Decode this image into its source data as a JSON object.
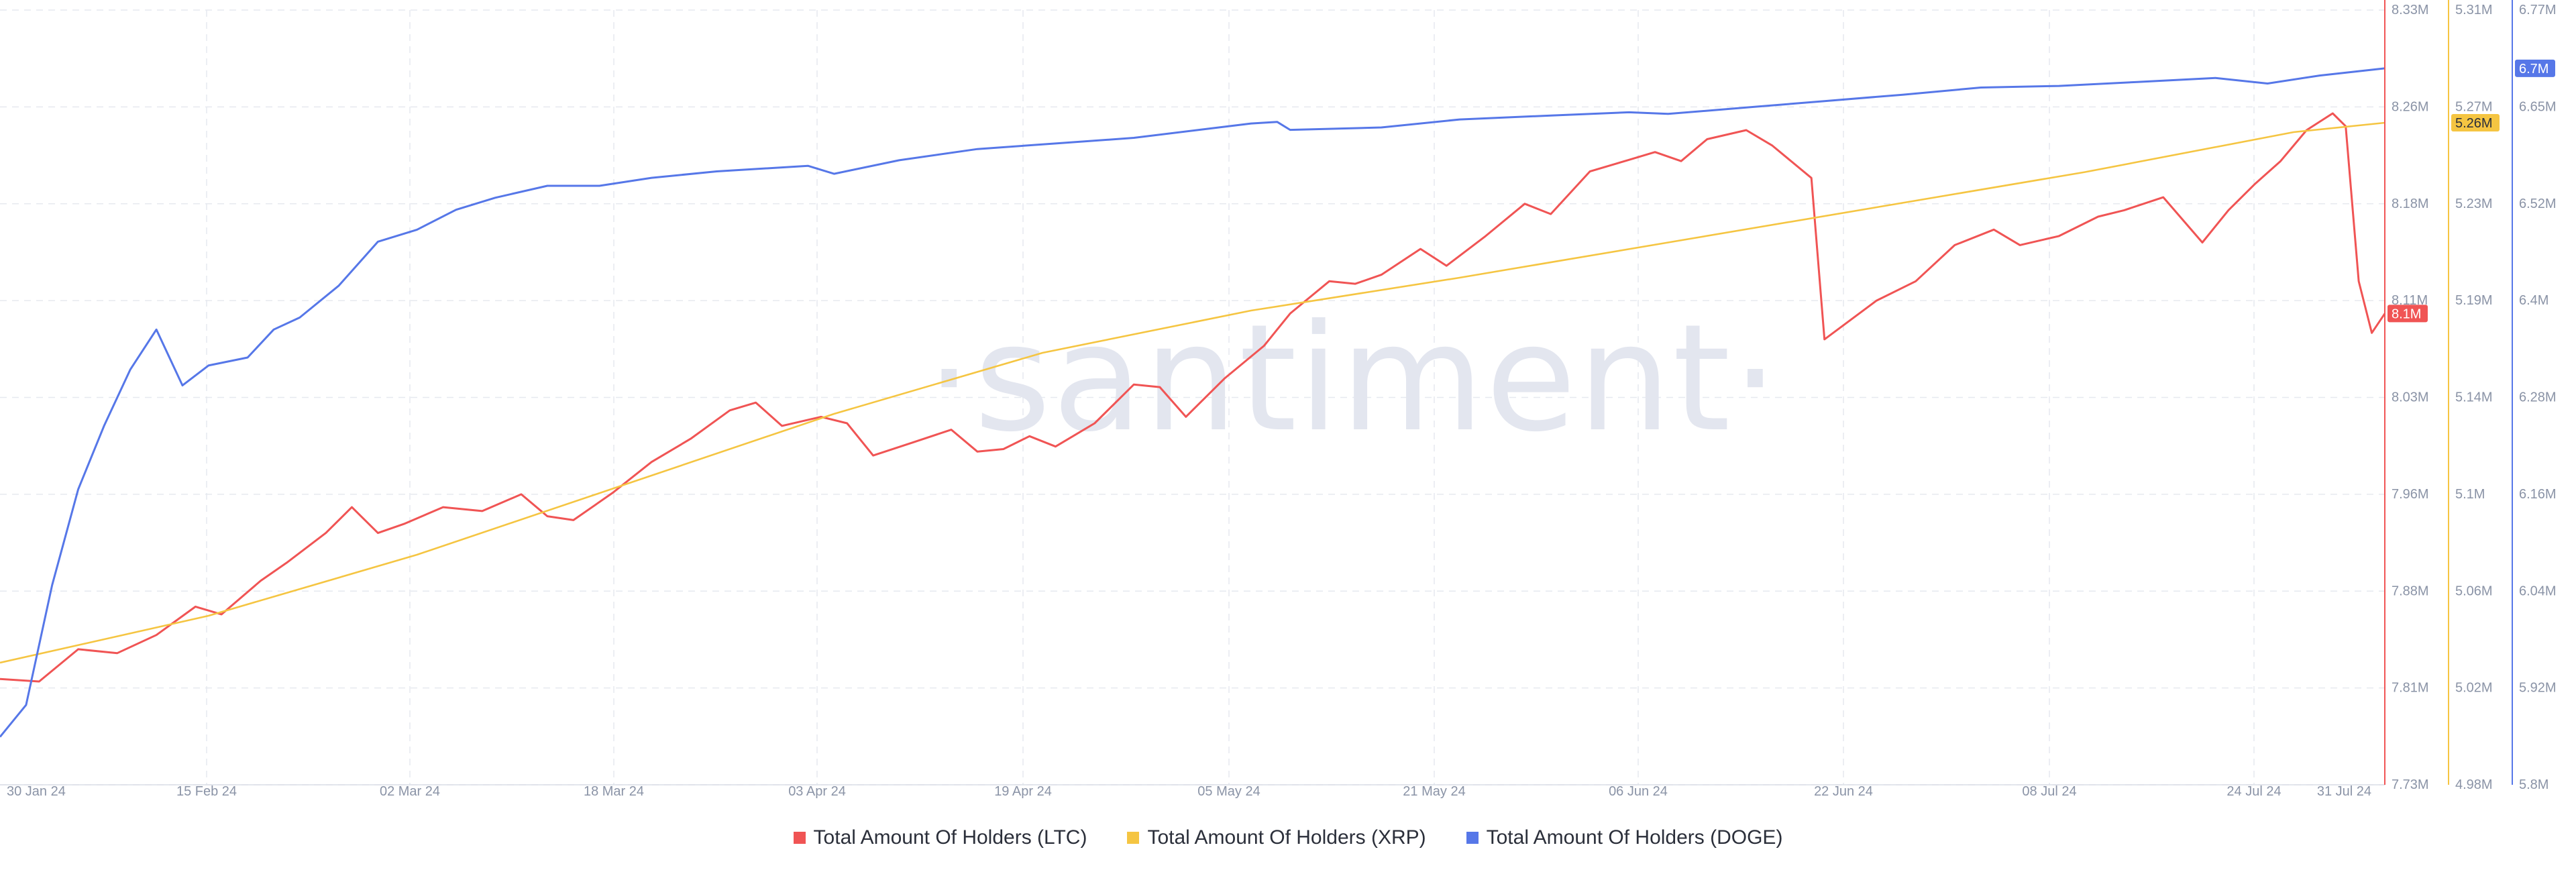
{
  "watermark": "·santiment·",
  "colors": {
    "ltc": "#f05454",
    "xrp": "#f5c542",
    "doge": "#5677e8",
    "grid": "#e6e9ef",
    "tick": "#8a93a6"
  },
  "chart_data": {
    "type": "line",
    "x_ticks": [
      "30 Jan 24",
      "15 Feb 24",
      "02 Mar 24",
      "18 Mar 24",
      "03 Apr 24",
      "19 Apr 24",
      "05 May 24",
      "21 May 24",
      "06 Jun 24",
      "22 Jun 24",
      "08 Jul 24",
      "24 Jul 24",
      "31 Jul 24"
    ],
    "x_start": "2024-01-30",
    "x_end": "2024-07-31",
    "grid": true,
    "legend_position": "bottom-center",
    "axes": {
      "ltc": {
        "ticks": [
          "8.33M",
          "8.26M",
          "8.18M",
          "8.11M",
          "8.03M",
          "7.96M",
          "7.88M",
          "7.81M",
          "7.73M"
        ],
        "min": 7.73,
        "max": 8.33,
        "unit": "M",
        "current_label": "8.1M"
      },
      "xrp": {
        "ticks": [
          "5.31M",
          "5.27M",
          "5.23M",
          "5.19M",
          "5.14M",
          "5.1M",
          "5.06M",
          "5.02M",
          "4.98M"
        ],
        "min": 4.98,
        "max": 5.31,
        "unit": "M",
        "current_label": "5.26M"
      },
      "doge": {
        "ticks": [
          "6.77M",
          "6.65M",
          "6.52M",
          "6.4M",
          "6.28M",
          "6.16M",
          "6.04M",
          "5.92M",
          "5.8M"
        ],
        "min": 5.8,
        "max": 6.77,
        "unit": "M",
        "current_label": "6.7M"
      }
    },
    "series": [
      {
        "name": "Total Amount Of Holders (LTC)",
        "key": "ltc",
        "points": [
          [
            "2024-01-30",
            7.812
          ],
          [
            "2024-02-02",
            7.81
          ],
          [
            "2024-02-05",
            7.835
          ],
          [
            "2024-02-08",
            7.832
          ],
          [
            "2024-02-11",
            7.846
          ],
          [
            "2024-02-14",
            7.868
          ],
          [
            "2024-02-16",
            7.862
          ],
          [
            "2024-02-19",
            7.888
          ],
          [
            "2024-02-21",
            7.902
          ],
          [
            "2024-02-24",
            7.925
          ],
          [
            "2024-02-26",
            7.945
          ],
          [
            "2024-02-28",
            7.925
          ],
          [
            "2024-03-01",
            7.932
          ],
          [
            "2024-03-04",
            7.945
          ],
          [
            "2024-03-07",
            7.942
          ],
          [
            "2024-03-10",
            7.955
          ],
          [
            "2024-03-12",
            7.938
          ],
          [
            "2024-03-14",
            7.935
          ],
          [
            "2024-03-17",
            7.956
          ],
          [
            "2024-03-20",
            7.98
          ],
          [
            "2024-03-23",
            7.998
          ],
          [
            "2024-03-26",
            8.02
          ],
          [
            "2024-03-28",
            8.026
          ],
          [
            "2024-03-30",
            8.008
          ],
          [
            "2024-04-02",
            8.015
          ],
          [
            "2024-04-04",
            8.01
          ],
          [
            "2024-04-06",
            7.985
          ],
          [
            "2024-04-09",
            7.995
          ],
          [
            "2024-04-12",
            8.005
          ],
          [
            "2024-04-14",
            7.988
          ],
          [
            "2024-04-16",
            7.99
          ],
          [
            "2024-04-18",
            8.0
          ],
          [
            "2024-04-20",
            7.992
          ],
          [
            "2024-04-23",
            8.01
          ],
          [
            "2024-04-26",
            8.04
          ],
          [
            "2024-04-28",
            8.038
          ],
          [
            "2024-04-30",
            8.015
          ],
          [
            "2024-05-03",
            8.045
          ],
          [
            "2024-05-06",
            8.07
          ],
          [
            "2024-05-08",
            8.095
          ],
          [
            "2024-05-11",
            8.12
          ],
          [
            "2024-05-13",
            8.118
          ],
          [
            "2024-05-15",
            8.125
          ],
          [
            "2024-05-18",
            8.145
          ],
          [
            "2024-05-20",
            8.132
          ],
          [
            "2024-05-23",
            8.155
          ],
          [
            "2024-05-26",
            8.18
          ],
          [
            "2024-05-28",
            8.172
          ],
          [
            "2024-05-31",
            8.205
          ],
          [
            "2024-06-03",
            8.214
          ],
          [
            "2024-06-05",
            8.22
          ],
          [
            "2024-06-07",
            8.213
          ],
          [
            "2024-06-09",
            8.23
          ],
          [
            "2024-06-12",
            8.237
          ],
          [
            "2024-06-14",
            8.225
          ],
          [
            "2024-06-17",
            8.2
          ],
          [
            "2024-06-18",
            8.075
          ],
          [
            "2024-06-22",
            8.105
          ],
          [
            "2024-06-25",
            8.12
          ],
          [
            "2024-06-28",
            8.148
          ],
          [
            "2024-07-01",
            8.16
          ],
          [
            "2024-07-03",
            8.148
          ],
          [
            "2024-07-06",
            8.155
          ],
          [
            "2024-07-09",
            8.17
          ],
          [
            "2024-07-11",
            8.175
          ],
          [
            "2024-07-14",
            8.185
          ],
          [
            "2024-07-17",
            8.15
          ],
          [
            "2024-07-19",
            8.175
          ],
          [
            "2024-07-21",
            8.195
          ],
          [
            "2024-07-23",
            8.213
          ],
          [
            "2024-07-25",
            8.237
          ],
          [
            "2024-07-27",
            8.25
          ],
          [
            "2024-07-28",
            8.24
          ],
          [
            "2024-07-29",
            8.12
          ],
          [
            "2024-07-30",
            8.08
          ],
          [
            "2024-07-31",
            8.095
          ]
        ]
      },
      {
        "name": "Total Amount Of Holders (XRP)",
        "key": "xrp",
        "points": [
          [
            "2024-01-30",
            5.032
          ],
          [
            "2024-02-15",
            5.052
          ],
          [
            "2024-03-02",
            5.078
          ],
          [
            "2024-03-18",
            5.108
          ],
          [
            "2024-04-03",
            5.138
          ],
          [
            "2024-04-19",
            5.164
          ],
          [
            "2024-05-05",
            5.182
          ],
          [
            "2024-05-21",
            5.196
          ],
          [
            "2024-06-06",
            5.211
          ],
          [
            "2024-06-22",
            5.226
          ],
          [
            "2024-07-08",
            5.241
          ],
          [
            "2024-07-24",
            5.258
          ],
          [
            "2024-07-31",
            5.262
          ]
        ]
      },
      {
        "name": "Total Amount Of Holders (DOGE)",
        "key": "doge",
        "points": [
          [
            "2024-01-30",
            5.86
          ],
          [
            "2024-02-01",
            5.9
          ],
          [
            "2024-02-03",
            6.05
          ],
          [
            "2024-02-05",
            6.17
          ],
          [
            "2024-02-07",
            6.25
          ],
          [
            "2024-02-09",
            6.32
          ],
          [
            "2024-02-11",
            6.37
          ],
          [
            "2024-02-13",
            6.3
          ],
          [
            "2024-02-15",
            6.325
          ],
          [
            "2024-02-18",
            6.335
          ],
          [
            "2024-02-20",
            6.37
          ],
          [
            "2024-02-22",
            6.385
          ],
          [
            "2024-02-25",
            6.425
          ],
          [
            "2024-02-28",
            6.48
          ],
          [
            "2024-03-02",
            6.495
          ],
          [
            "2024-03-05",
            6.52
          ],
          [
            "2024-03-08",
            6.535
          ],
          [
            "2024-03-12",
            6.55
          ],
          [
            "2024-03-16",
            6.55
          ],
          [
            "2024-03-20",
            6.56
          ],
          [
            "2024-03-25",
            6.568
          ],
          [
            "2024-04-01",
            6.575
          ],
          [
            "2024-04-03",
            6.565
          ],
          [
            "2024-04-08",
            6.582
          ],
          [
            "2024-04-14",
            6.596
          ],
          [
            "2024-04-20",
            6.603
          ],
          [
            "2024-04-26",
            6.61
          ],
          [
            "2024-05-01",
            6.62
          ],
          [
            "2024-05-05",
            6.628
          ],
          [
            "2024-05-07",
            6.63
          ],
          [
            "2024-05-08",
            6.62
          ],
          [
            "2024-05-15",
            6.623
          ],
          [
            "2024-05-21",
            6.633
          ],
          [
            "2024-05-28",
            6.638
          ],
          [
            "2024-06-03",
            6.642
          ],
          [
            "2024-06-06",
            6.64
          ],
          [
            "2024-06-12",
            6.648
          ],
          [
            "2024-06-18",
            6.656
          ],
          [
            "2024-06-24",
            6.664
          ],
          [
            "2024-06-30",
            6.673
          ],
          [
            "2024-07-06",
            6.675
          ],
          [
            "2024-07-12",
            6.68
          ],
          [
            "2024-07-18",
            6.685
          ],
          [
            "2024-07-22",
            6.678
          ],
          [
            "2024-07-26",
            6.688
          ],
          [
            "2024-07-31",
            6.697
          ]
        ]
      }
    ]
  }
}
